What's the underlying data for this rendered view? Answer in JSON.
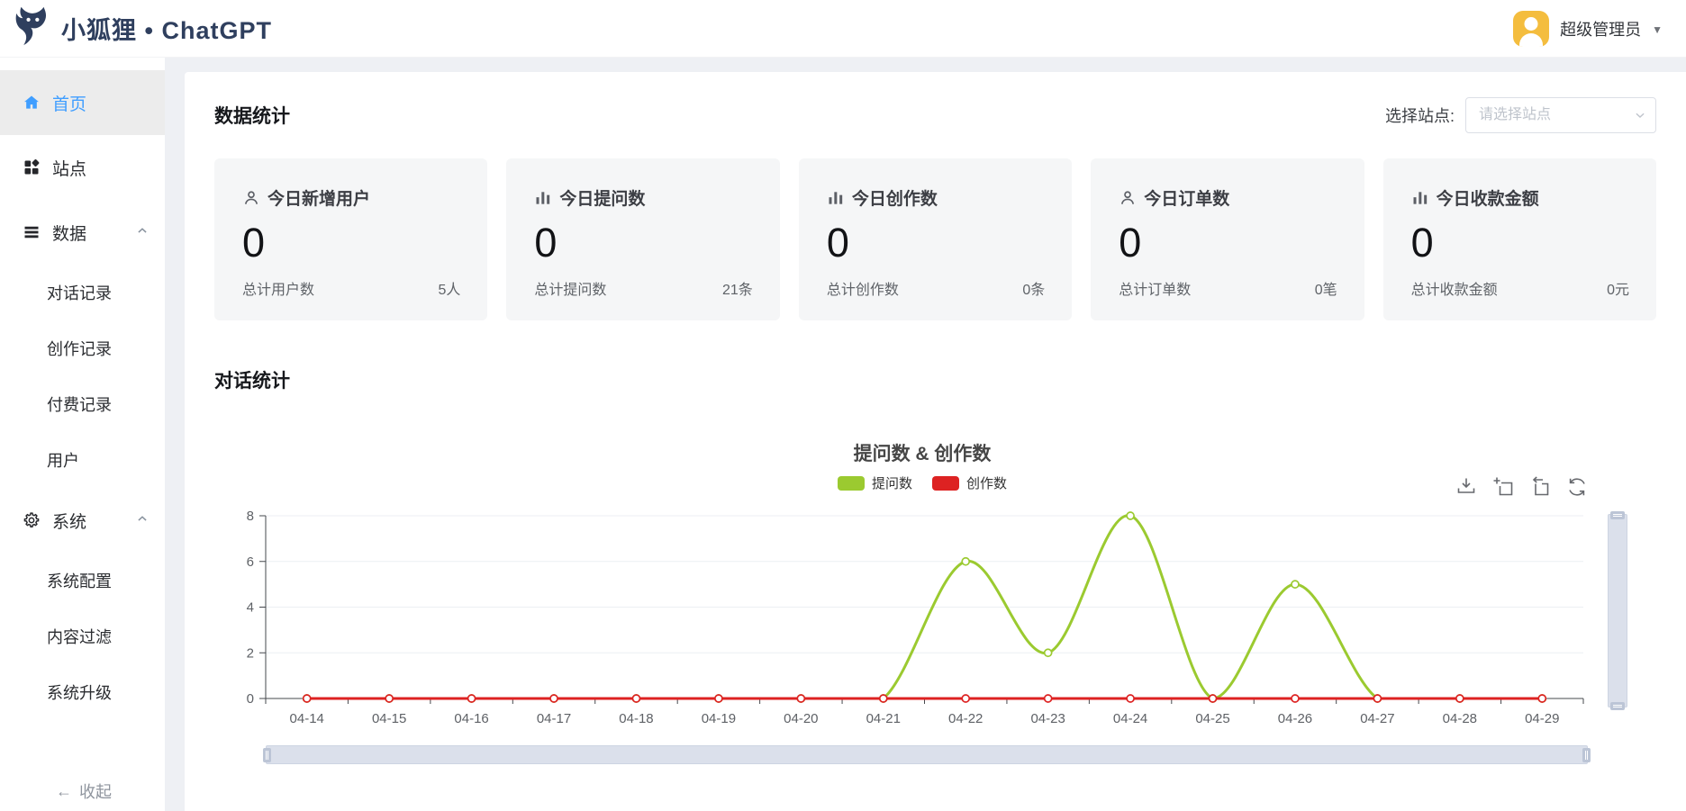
{
  "header": {
    "brand": "小狐狸 • ChatGPT",
    "user_name": "超级管理员"
  },
  "sidebar": {
    "home": "首页",
    "sites": "站点",
    "data_group": "数据",
    "data_children": [
      "对话记录",
      "创作记录",
      "付费记录",
      "用户"
    ],
    "system_group": "系统",
    "system_children": [
      "系统配置",
      "内容过滤",
      "系统升级"
    ],
    "collapse": "收起"
  },
  "stats": {
    "title": "数据统计",
    "site_label": "选择站点:",
    "site_placeholder": "请选择站点",
    "cards": [
      {
        "icon": "user-icon",
        "title": "今日新增用户",
        "value": "0",
        "footer_label": "总计用户数",
        "footer_value": "5人"
      },
      {
        "icon": "bar-chart-icon",
        "title": "今日提问数",
        "value": "0",
        "footer_label": "总计提问数",
        "footer_value": "21条"
      },
      {
        "icon": "bar-chart-icon",
        "title": "今日创作数",
        "value": "0",
        "footer_label": "总计创作数",
        "footer_value": "0条"
      },
      {
        "icon": "user-icon",
        "title": "今日订单数",
        "value": "0",
        "footer_label": "总计订单数",
        "footer_value": "0笔"
      },
      {
        "icon": "bar-chart-icon",
        "title": "今日收款金额",
        "value": "0",
        "footer_label": "总计收款金额",
        "footer_value": "0元"
      }
    ]
  },
  "conversation": {
    "title": "对话统计"
  },
  "colors": {
    "accent_blue": "#409eff",
    "brand_navy": "#2f3f5e",
    "avatar_yellow": "#f4bd3e"
  },
  "chart_data": {
    "type": "line",
    "title": "提问数 & 创作数",
    "categories": [
      "04-14",
      "04-15",
      "04-16",
      "04-17",
      "04-18",
      "04-19",
      "04-20",
      "04-21",
      "04-22",
      "04-23",
      "04-24",
      "04-25",
      "04-26",
      "04-27",
      "04-28",
      "04-29"
    ],
    "series": [
      {
        "name": "提问数",
        "color": "#9bca30",
        "values": [
          0,
          0,
          0,
          0,
          0,
          0,
          0,
          0,
          6,
          2,
          8,
          0,
          5,
          0,
          0,
          0
        ]
      },
      {
        "name": "创作数",
        "color": "#dd2222",
        "values": [
          0,
          0,
          0,
          0,
          0,
          0,
          0,
          0,
          0,
          0,
          0,
          0,
          0,
          0,
          0,
          0
        ]
      }
    ],
    "ylim": [
      0,
      8
    ],
    "yticks": [
      0,
      2,
      4,
      6,
      8
    ],
    "smooth": true,
    "grid": true,
    "legend_position": "top"
  }
}
